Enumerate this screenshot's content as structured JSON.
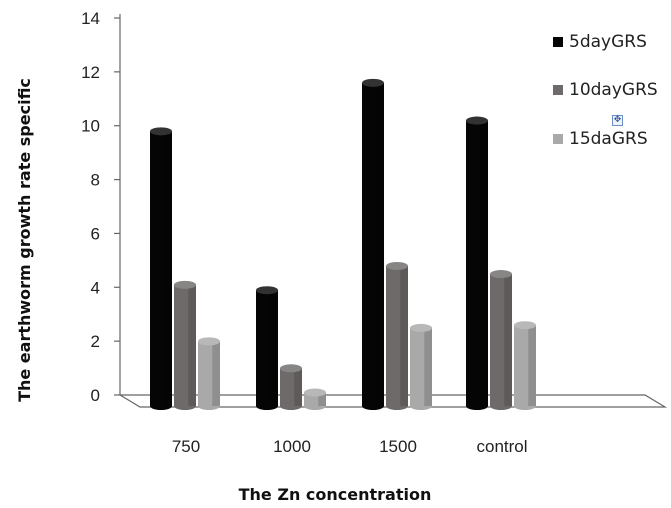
{
  "chart_data": {
    "type": "bar",
    "title": "",
    "xlabel": "The Zn concentration",
    "ylabel": "The earthworm growth rate specific",
    "ylim": [
      0,
      14
    ],
    "yticks": [
      "0",
      "2",
      "4",
      "6",
      "8",
      "10",
      "12",
      "14"
    ],
    "categories": [
      "750",
      "1000",
      "1500",
      "control"
    ],
    "series": [
      {
        "name": "5dayGRS",
        "values": [
          10.2,
          4.3,
          12.0,
          10.6
        ],
        "color": "#050505"
      },
      {
        "name": "10dayGRS",
        "values": [
          4.5,
          1.4,
          5.2,
          4.9
        ],
        "color": "#6e6a6a"
      },
      {
        "name": "15daGRS",
        "values": [
          2.4,
          0.5,
          2.9,
          3.0
        ],
        "color": "#a9a9a9"
      }
    ],
    "grid": false,
    "legend_position": "right",
    "style": "3d-clustered-column"
  },
  "move_handle_icon": "move-arrows-icon"
}
